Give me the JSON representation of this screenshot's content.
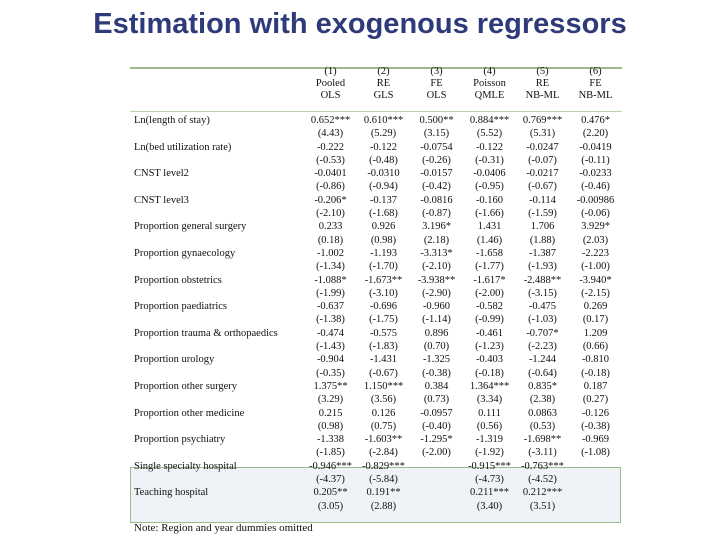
{
  "title": "Estimation with exogenous regressors",
  "columns": [
    {
      "num": "(1)",
      "l1": "Pooled",
      "l2": "OLS"
    },
    {
      "num": "(2)",
      "l1": "RE",
      "l2": "GLS"
    },
    {
      "num": "(3)",
      "l1": "FE",
      "l2": "OLS"
    },
    {
      "num": "(4)",
      "l1": "Poisson",
      "l2": "QMLE"
    },
    {
      "num": "(5)",
      "l1": "RE",
      "l2": "NB-ML"
    },
    {
      "num": "(6)",
      "l1": "FE",
      "l2": "NB-ML"
    }
  ],
  "rows": [
    {
      "label": "Ln(length of stay)",
      "coef": [
        "0.652***",
        "0.610***",
        "0.500**",
        "0.884***",
        "0.769***",
        "0.476*"
      ],
      "t": [
        "(4.43)",
        "(5.29)",
        "(3.15)",
        "(5.52)",
        "(5.31)",
        "(2.20)"
      ]
    },
    {
      "label": "Ln(bed utilization rate)",
      "coef": [
        "-0.222",
        "-0.122",
        "-0.0754",
        "-0.122",
        "-0.0247",
        "-0.0419"
      ],
      "t": [
        "(-0.53)",
        "(-0.48)",
        "(-0.26)",
        "(-0.31)",
        "(-0.07)",
        "(-0.11)"
      ]
    },
    {
      "label": "CNST level2",
      "coef": [
        "-0.0401",
        "-0.0310",
        "-0.0157",
        "-0.0406",
        "-0.0217",
        "-0.0233"
      ],
      "t": [
        "(-0.86)",
        "(-0.94)",
        "(-0.42)",
        "(-0.95)",
        "(-0.67)",
        "(-0.46)"
      ]
    },
    {
      "label": "CNST level3",
      "coef": [
        "-0.206*",
        "-0.137",
        "-0.0816",
        "-0.160",
        "-0.114",
        "-0.00986"
      ],
      "t": [
        "(-2.10)",
        "(-1.68)",
        "(-0.87)",
        "(-1.66)",
        "(-1.59)",
        "(-0.06)"
      ]
    },
    {
      "label": "Proportion general surgery",
      "coef": [
        "0.233",
        "0.926",
        "3.196*",
        "1.431",
        "1.706",
        "3.929*"
      ],
      "t": [
        "(0.18)",
        "(0.98)",
        "(2.18)",
        "(1.46)",
        "(1.88)",
        "(2.03)"
      ]
    },
    {
      "label": "Proportion gynaecology",
      "coef": [
        "-1.002",
        "-1.193",
        "-3.313*",
        "-1.658",
        "-1.387",
        "-2.223"
      ],
      "t": [
        "(-1.34)",
        "(-1.70)",
        "(-2.10)",
        "(-1.77)",
        "(-1.93)",
        "(-1.00)"
      ]
    },
    {
      "label": "Proportion obstetrics",
      "coef": [
        "-1.088*",
        "-1.673**",
        "-3.938**",
        "-1.617*",
        "-2.488**",
        "-3.940*"
      ],
      "t": [
        "(-1.99)",
        "(-3.10)",
        "(-2.90)",
        "(-2.00)",
        "(-3.15)",
        "(-2.15)"
      ]
    },
    {
      "label": "Proportion paediatrics",
      "coef": [
        "-0.637",
        "-0.696",
        "-0.960",
        "-0.582",
        "-0.475",
        "0.269"
      ],
      "t": [
        "(-1.38)",
        "(-1.75)",
        "(-1.14)",
        "(-0.99)",
        "(-1.03)",
        "(0.17)"
      ]
    },
    {
      "label": "Proportion trauma & orthopaedics",
      "coef": [
        "-0.474",
        "-0.575",
        "0.896",
        "-0.461",
        "-0.707*",
        "1.209"
      ],
      "t": [
        "(-1.43)",
        "(-1.83)",
        "(0.70)",
        "(-1.23)",
        "(-2.23)",
        "(0.66)"
      ]
    },
    {
      "label": "Proportion urology",
      "coef": [
        "-0.904",
        "-1.431",
        "-1.325",
        "-0.403",
        "-1.244",
        "-0.810"
      ],
      "t": [
        "(-0.35)",
        "(-0.67)",
        "(-0.38)",
        "(-0.18)",
        "(-0.64)",
        "(-0.18)"
      ]
    },
    {
      "label": "Proportion other surgery",
      "coef": [
        "1.375**",
        "1.150***",
        "0.384",
        "1.364***",
        "0.835*",
        "0.187"
      ],
      "t": [
        "(3.29)",
        "(3.56)",
        "(0.73)",
        "(3.34)",
        "(2.38)",
        "(0.27)"
      ]
    },
    {
      "label": "Proportion other medicine",
      "coef": [
        "0.215",
        "0.126",
        "-0.0957",
        "0.111",
        "0.0863",
        "-0.126"
      ],
      "t": [
        "(0.98)",
        "(0.75)",
        "(-0.40)",
        "(0.56)",
        "(0.53)",
        "(-0.38)"
      ]
    },
    {
      "label": "Proportion psychiatry",
      "coef": [
        "-1.338",
        "-1.603**",
        "-1.295*",
        "-1.319",
        "-1.698**",
        "-0.969"
      ],
      "t": [
        "(-1.85)",
        "(-2.84)",
        "(-2.00)",
        "(-1.92)",
        "(-3.11)",
        "(-1.08)"
      ]
    },
    {
      "label": "Single specialty hospital",
      "coef": [
        "-0.946***",
        "-0.829***",
        "",
        "-0.915***",
        "-0.763***",
        ""
      ],
      "t": [
        "(-4.37)",
        "(-5.84)",
        "",
        "(-4.73)",
        "(-4.52)",
        ""
      ]
    },
    {
      "label": "Teaching hospital",
      "coef": [
        "0.205**",
        "0.191**",
        "",
        "0.211***",
        "0.212***",
        ""
      ],
      "t": [
        "(3.05)",
        "(2.88)",
        "",
        "(3.40)",
        "(3.51)",
        ""
      ]
    }
  ],
  "note": "Note: Region and year dummies omitted"
}
